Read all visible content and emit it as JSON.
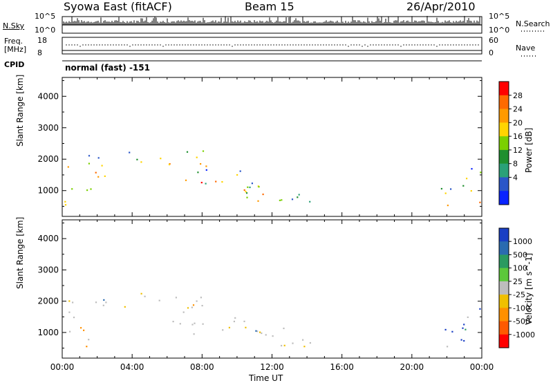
{
  "header": {
    "station": "Syowa East (fitACF)",
    "beam": "Beam 15",
    "date": "26/Apr/2010"
  },
  "noise_panel": {
    "left_label": "N.Sky",
    "left_ticks": [
      "10^5",
      "10^0"
    ],
    "right_label": "N.Search",
    "right_ticks": [
      "10^5",
      "10^0"
    ]
  },
  "freq_panel": {
    "left_label_1": "Freq.",
    "left_label_2": "[MHz]",
    "left_ticks": [
      "18",
      "8"
    ],
    "right_label": "Nave",
    "right_ticks": [
      "60",
      "0"
    ]
  },
  "cpid_panel": {
    "left_label": "CPID",
    "mode_text": "normal (fast) -151"
  },
  "chart_data": {
    "type": "heatmap",
    "xlabel": "Time UT",
    "x_tick_labels": [
      "00:00",
      "04:00",
      "08:00",
      "12:00",
      "16:00",
      "20:00",
      "00:00"
    ],
    "xlim_hours": [
      0,
      24
    ],
    "ylabel": "Slant Range [km]",
    "ylim_km": [
      180,
      4600
    ],
    "y_ticks": [
      1000,
      2000,
      3000,
      4000
    ],
    "y_tick_labels": [
      "1000",
      "2000",
      "3000",
      "4000"
    ],
    "panels": [
      {
        "name": "power",
        "colorbar_label": "Power [dB]",
        "colorbar_ticks": [
          "28",
          "24",
          "20",
          "16",
          "12",
          "8",
          "4"
        ],
        "colorbar_colors": [
          "#ff0000",
          "#ff6a00",
          "#ff9a00",
          "#ffd400",
          "#7bd000",
          "#1f8f2f",
          "#2aa178",
          "#2a56c8",
          "#0a24ff"
        ]
      },
      {
        "name": "velocity",
        "colorbar_label": "Velocity [m s^-1]",
        "colorbar_ticks": [
          "1000",
          "500",
          "100",
          "25",
          "-25",
          "-100",
          "-500",
          "-1000"
        ],
        "colorbar_colors": [
          "#1a3fc4",
          "#2a6bb0",
          "#2a9a60",
          "#5cc83a",
          "#bdbdbd",
          "#f0c000",
          "#ff9000",
          "#ff5a00",
          "#ff0000"
        ]
      }
    ],
    "scatter_regions": [
      {
        "t0": 3.5,
        "t1": 8.5,
        "r0": 1750,
        "r1": 2300
      },
      {
        "t0": 6.0,
        "t1": 10.5,
        "r0": 1250,
        "r1": 1700
      },
      {
        "t0": 7.0,
        "t1": 11.5,
        "r0": 900,
        "r1": 1300
      },
      {
        "t0": 10.5,
        "t1": 13.5,
        "r0": 600,
        "r1": 1200
      },
      {
        "t0": 12.5,
        "t1": 14.2,
        "r0": 350,
        "r1": 900
      },
      {
        "t0": 0.1,
        "t1": 1.8,
        "r0": 550,
        "r1": 1250
      },
      {
        "t0": 0.1,
        "t1": 2.5,
        "r0": 1400,
        "r1": 2300
      },
      {
        "t0": 21.5,
        "t1": 24.0,
        "r0": 550,
        "r1": 1200
      },
      {
        "t0": 22.8,
        "t1": 24.0,
        "r0": 1000,
        "r1": 1800
      }
    ]
  }
}
